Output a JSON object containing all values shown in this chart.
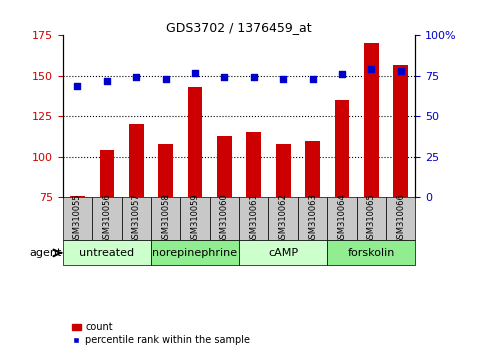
{
  "title": "GDS3702 / 1376459_at",
  "samples": [
    "GSM310055",
    "GSM310056",
    "GSM310057",
    "GSM310058",
    "GSM310059",
    "GSM310060",
    "GSM310061",
    "GSM310062",
    "GSM310063",
    "GSM310064",
    "GSM310065",
    "GSM310066"
  ],
  "counts": [
    76,
    104,
    120,
    108,
    143,
    113,
    115,
    108,
    110,
    135,
    170,
    157
  ],
  "percentiles": [
    69,
    72,
    74,
    73,
    77,
    74,
    74,
    73,
    73,
    76,
    79,
    78
  ],
  "bar_color": "#cc0000",
  "dot_color": "#0000cc",
  "ylim_left": [
    75,
    175
  ],
  "ylim_right": [
    0,
    100
  ],
  "yticks_left": [
    75,
    100,
    125,
    150,
    175
  ],
  "yticks_right": [
    0,
    25,
    50,
    75,
    100
  ],
  "ytick_labels_right": [
    "0",
    "25",
    "50",
    "75",
    "100%"
  ],
  "agents": [
    {
      "label": "untreated",
      "start": 0,
      "end": 3
    },
    {
      "label": "norepinephrine",
      "start": 3,
      "end": 6
    },
    {
      "label": "cAMP",
      "start": 6,
      "end": 9
    },
    {
      "label": "forskolin",
      "start": 9,
      "end": 12
    }
  ],
  "agent_bg_light": "#ccffcc",
  "agent_bg_mid": "#90ee90",
  "xlabel_agent": "agent",
  "legend_count_label": "count",
  "legend_pct_label": "percentile rank within the sample",
  "bar_width": 0.5,
  "grid_color": "#000000",
  "tick_color_left": "#cc0000",
  "tick_color_right": "#0000cc",
  "sample_bg": "#c8c8c8",
  "hgrid_ticks": [
    100,
    125,
    150
  ]
}
